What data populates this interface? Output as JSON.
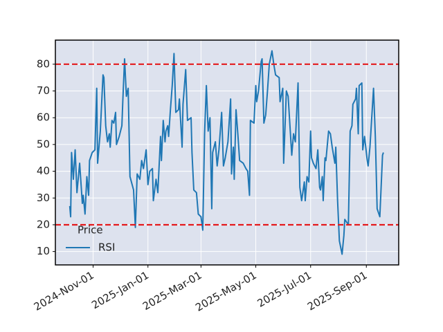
{
  "chart_data": {
    "type": "line",
    "x": [
      "2024-10-06",
      "2024-10-07",
      "2024-10-08",
      "2024-10-10",
      "2024-10-12",
      "2024-10-14",
      "2024-10-17",
      "2024-10-20",
      "2024-10-21",
      "2024-10-23",
      "2024-10-25",
      "2024-10-27",
      "2024-10-28",
      "2024-10-31",
      "2024-11-03",
      "2024-11-05",
      "2024-11-06",
      "2024-11-09",
      "2024-11-12",
      "2024-11-13",
      "2024-11-15",
      "2024-11-17",
      "2024-11-19",
      "2024-11-20",
      "2024-11-22",
      "2024-11-24",
      "2024-11-26",
      "2024-11-27",
      "2024-11-30",
      "2024-12-03",
      "2024-12-04",
      "2024-12-06",
      "2024-12-08",
      "2024-12-10",
      "2024-12-12",
      "2024-12-16",
      "2024-12-18",
      "2024-12-20",
      "2024-12-23",
      "2024-12-25",
      "2024-12-27",
      "2024-12-30",
      "2025-01-01",
      "2025-01-03",
      "2025-01-06",
      "2025-01-07",
      "2025-01-10",
      "2025-01-12",
      "2025-01-15",
      "2025-01-16",
      "2025-01-18",
      "2025-01-20",
      "2025-01-21",
      "2025-01-23",
      "2025-01-24",
      "2025-01-26",
      "2025-01-28",
      "2025-01-30",
      "2025-02-01",
      "2025-02-04",
      "2025-02-05",
      "2025-02-08",
      "2025-02-09",
      "2025-02-12",
      "2025-02-14",
      "2025-02-18",
      "2025-02-19",
      "2025-02-21",
      "2025-02-24",
      "2025-02-26",
      "2025-03-01",
      "2025-03-03",
      "2025-03-05",
      "2025-03-07",
      "2025-03-09",
      "2025-03-11",
      "2025-03-13",
      "2025-03-14",
      "2025-03-17",
      "2025-03-19",
      "2025-03-21",
      "2025-03-24",
      "2025-03-26",
      "2025-03-28",
      "2025-03-31",
      "2025-04-03",
      "2025-04-04",
      "2025-04-06",
      "2025-04-07",
      "2025-04-09",
      "2025-04-11",
      "2025-04-13",
      "2025-04-17",
      "2025-04-20",
      "2025-04-22",
      "2025-04-24",
      "2025-04-25",
      "2025-04-29",
      "2025-05-01",
      "2025-05-02",
      "2025-05-04",
      "2025-05-07",
      "2025-05-08",
      "2025-05-10",
      "2025-05-12",
      "2025-05-14",
      "2025-05-16",
      "2025-05-19",
      "2025-05-21",
      "2025-05-23",
      "2025-05-27",
      "2025-05-28",
      "2025-05-31",
      "2025-06-01",
      "2025-06-04",
      "2025-06-06",
      "2025-06-08",
      "2025-06-10",
      "2025-06-12",
      "2025-06-14",
      "2025-06-17",
      "2025-06-19",
      "2025-06-21",
      "2025-06-24",
      "2025-06-25",
      "2025-06-27",
      "2025-06-29",
      "2025-07-01",
      "2025-07-02",
      "2025-07-04",
      "2025-07-07",
      "2025-07-09",
      "2025-07-11",
      "2025-07-12",
      "2025-07-14",
      "2025-07-15",
      "2025-07-17",
      "2025-07-18",
      "2025-07-21",
      "2025-07-23",
      "2025-07-25",
      "2025-07-28",
      "2025-07-29",
      "2025-07-31",
      "2025-08-02",
      "2025-08-05",
      "2025-08-07",
      "2025-08-08",
      "2025-08-10",
      "2025-08-12",
      "2025-08-14",
      "2025-08-16",
      "2025-08-17",
      "2025-08-20",
      "2025-08-21",
      "2025-08-23",
      "2025-08-24",
      "2025-08-27",
      "2025-08-28",
      "2025-08-30",
      "2025-09-02",
      "2025-09-03",
      "2025-09-05",
      "2025-09-07",
      "2025-09-09",
      "2025-09-11",
      "2025-09-13",
      "2025-09-15",
      "2025-09-16",
      "2025-09-19",
      "2025-09-20"
    ],
    "series": [
      {
        "name": "RSI",
        "color": "#1f77b4",
        "values": [
          27,
          23,
          47,
          37,
          48,
          32,
          43,
          28,
          31,
          24,
          38,
          31,
          44,
          47,
          48,
          71,
          43,
          55,
          76,
          75,
          57,
          51,
          54,
          49,
          59,
          58,
          62,
          50,
          53,
          57,
          66,
          82,
          68,
          71,
          38,
          33,
          19,
          39,
          37,
          44,
          41,
          48,
          35,
          40,
          41,
          29,
          37,
          32,
          53,
          44,
          59,
          51,
          55,
          57,
          53,
          63,
          72,
          84,
          62,
          63,
          67,
          49,
          65,
          78,
          59,
          60,
          47,
          33,
          32,
          24,
          23,
          18,
          54,
          72,
          55,
          60,
          26,
          47,
          51,
          42,
          48,
          62,
          42,
          45,
          51,
          67,
          39,
          49,
          37,
          63,
          54,
          44,
          43,
          41,
          40,
          31,
          59,
          58,
          72,
          66,
          70,
          81,
          82,
          58,
          61,
          70,
          80,
          85,
          80,
          76,
          75,
          66,
          71,
          43,
          70,
          68,
          57,
          46,
          54,
          51,
          73,
          34,
          29,
          36,
          29,
          38,
          36,
          55,
          45,
          43,
          41,
          48,
          34,
          33,
          38,
          29,
          45,
          44,
          55,
          54,
          49,
          43,
          49,
          29,
          14,
          9,
          16,
          22,
          21,
          20,
          55,
          57,
          65,
          67,
          71,
          54,
          72,
          73,
          48,
          53,
          44,
          42,
          49,
          60,
          71,
          53,
          26,
          24,
          23,
          46,
          47
        ]
      }
    ],
    "xlim": [
      "2024-09-20",
      "2025-10-07"
    ],
    "xticks": [
      {
        "value": "2024-11-01",
        "label": "2024-Nov-01"
      },
      {
        "value": "2025-01-01",
        "label": "2025-Jan-01"
      },
      {
        "value": "2025-03-01",
        "label": "2025-Mar-01"
      },
      {
        "value": "2025-05-01",
        "label": "2025-May-01"
      },
      {
        "value": "2025-07-01",
        "label": "2025-Jul-01"
      },
      {
        "value": "2025-09-01",
        "label": "2025-Sep-01"
      }
    ],
    "ylim": [
      5,
      89
    ],
    "yticks": [
      10,
      20,
      30,
      40,
      50,
      60,
      70,
      80
    ],
    "hlines": [
      80,
      20
    ],
    "hline_color": "#e41a1c",
    "grid": true,
    "background": "#dde2ee",
    "legend_title": "Price",
    "legend": "lower left"
  }
}
